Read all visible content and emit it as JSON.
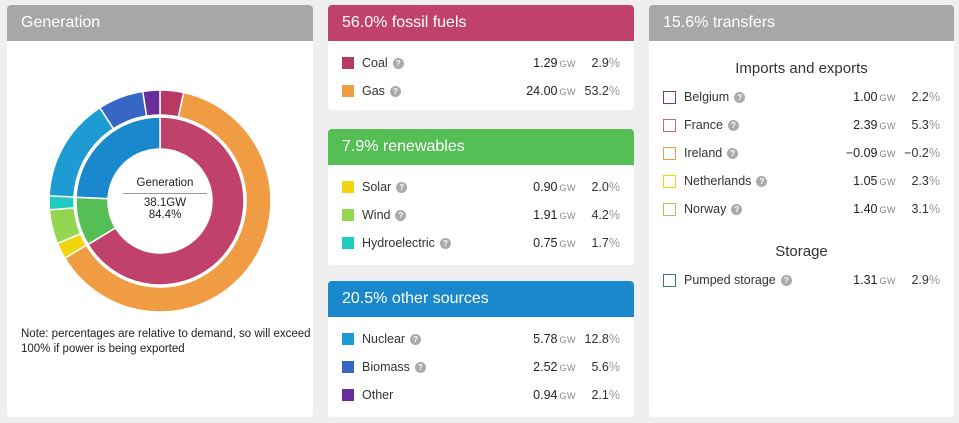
{
  "colors": {
    "generation_header": "#a7a7a7",
    "fossil_header": "#c0426a",
    "renewables_header": "#55be55",
    "other_header": "#1a88cc",
    "transfers_header": "#a7a7a7"
  },
  "generation": {
    "title": "Generation",
    "center_title": "Generation",
    "center_value": "38.1GW",
    "center_pct": "84.4%",
    "note": "Note: percentages are relative to demand, so will exceed 100% if power is being exported"
  },
  "fossil": {
    "title": "56.0% fossil fuels",
    "items": [
      {
        "name": "Coal",
        "value": "1.29",
        "unit": "GW",
        "pct": "2.9",
        "color": "#b83a63"
      },
      {
        "name": "Gas",
        "value": "24.00",
        "unit": "GW",
        "pct": "53.2",
        "color": "#f09c42"
      }
    ]
  },
  "renewables": {
    "title": "7.9% renewables",
    "items": [
      {
        "name": "Solar",
        "value": "0.90",
        "unit": "GW",
        "pct": "2.0",
        "color": "#f0d510"
      },
      {
        "name": "Wind",
        "value": "1.91",
        "unit": "GW",
        "pct": "4.2",
        "color": "#92d651"
      },
      {
        "name": "Hydroelectric",
        "value": "0.75",
        "unit": "GW",
        "pct": "1.7",
        "color": "#22cbc0"
      }
    ]
  },
  "other": {
    "title": "20.5% other sources",
    "items": [
      {
        "name": "Nuclear",
        "value": "5.78",
        "unit": "GW",
        "pct": "12.8",
        "color": "#1f9bd4"
      },
      {
        "name": "Biomass",
        "value": "2.52",
        "unit": "GW",
        "pct": "5.6",
        "color": "#3566c4"
      },
      {
        "name": "Other",
        "value": "0.94",
        "unit": "GW",
        "pct": "2.1",
        "color": "#6a2e9a"
      }
    ]
  },
  "transfers": {
    "title": "15.6% transfers",
    "imports_title": "Imports and exports",
    "imports": [
      {
        "name": "Belgium",
        "value": "1.00",
        "unit": "GW",
        "pct": "2.2",
        "color": "#7a3a8a"
      },
      {
        "name": "France",
        "value": "2.39",
        "unit": "GW",
        "pct": "5.3",
        "color": "#d06a5a"
      },
      {
        "name": "Ireland",
        "value": "−0.09",
        "unit": "GW",
        "pct": "−0.2",
        "color": "#f09c42"
      },
      {
        "name": "Netherlands",
        "value": "1.05",
        "unit": "GW",
        "pct": "2.3",
        "color": "#f0d510"
      },
      {
        "name": "Norway",
        "value": "1.40",
        "unit": "GW",
        "pct": "3.1",
        "color": "#92d651"
      }
    ],
    "storage_title": "Storage",
    "storage": [
      {
        "name": "Pumped storage",
        "value": "1.31",
        "unit": "GW",
        "pct": "2.9",
        "color": "#3a6ea0"
      }
    ]
  },
  "chart_data": {
    "type": "pie",
    "inner_ring": [
      {
        "name": "fossil fuels",
        "value": 56.0,
        "color": "#c0426a"
      },
      {
        "name": "renewables",
        "value": 7.9,
        "color": "#55be55"
      },
      {
        "name": "other sources",
        "value": 20.5,
        "color": "#1a88cc"
      }
    ],
    "outer_ring": [
      {
        "name": "Coal",
        "value": 2.9,
        "color": "#b83a63"
      },
      {
        "name": "Gas",
        "value": 53.2,
        "color": "#f09c42"
      },
      {
        "name": "Solar",
        "value": 2.0,
        "color": "#f0d510"
      },
      {
        "name": "Wind",
        "value": 4.2,
        "color": "#92d651"
      },
      {
        "name": "Hydroelectric",
        "value": 1.7,
        "color": "#22cbc0"
      },
      {
        "name": "Nuclear",
        "value": 12.8,
        "color": "#1f9bd4"
      },
      {
        "name": "Biomass",
        "value": 5.6,
        "color": "#3566c4"
      },
      {
        "name": "Other",
        "value": 2.1,
        "color": "#6a2e9a"
      }
    ]
  }
}
